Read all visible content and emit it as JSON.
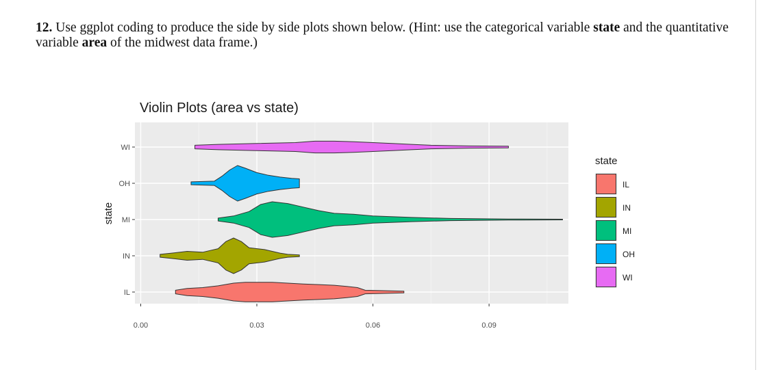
{
  "question": {
    "number": "12.",
    "text_1": " Use ggplot coding to produce the side by side plots shown below. (Hint: use the categorical variable ",
    "bold_1": "state",
    "text_2": " and the quantitative variable ",
    "bold_2": "area",
    "text_3": " of the midwest data frame.)"
  },
  "chart_data": {
    "type": "violin",
    "orientation": "horizontal",
    "title": "Violin Plots (area vs state)",
    "xlabel": "",
    "ylabel": "state",
    "xlim": [
      -0.0015,
      0.1105
    ],
    "x_ticks": [
      0.0,
      0.03,
      0.06,
      0.09
    ],
    "x_tick_labels": [
      "0.00",
      "0.03",
      "0.06",
      "0.09"
    ],
    "categories": [
      "IL",
      "IN",
      "MI",
      "OH",
      "WI"
    ],
    "grid": true,
    "legend": {
      "title": "state",
      "position": "right",
      "entries": [
        "IL",
        "IN",
        "MI",
        "OH",
        "WI"
      ]
    },
    "series": [
      {
        "name": "IL",
        "color": "#F8766D",
        "min": 0.009,
        "max": 0.068,
        "profile": [
          [
            0.009,
            0.1
          ],
          [
            0.012,
            0.2
          ],
          [
            0.016,
            0.25
          ],
          [
            0.02,
            0.35
          ],
          [
            0.024,
            0.5
          ],
          [
            0.027,
            0.55
          ],
          [
            0.03,
            0.55
          ],
          [
            0.034,
            0.55
          ],
          [
            0.038,
            0.5
          ],
          [
            0.042,
            0.45
          ],
          [
            0.046,
            0.42
          ],
          [
            0.05,
            0.38
          ],
          [
            0.054,
            0.3
          ],
          [
            0.056,
            0.25
          ],
          [
            0.058,
            0.1
          ],
          [
            0.062,
            0.08
          ],
          [
            0.068,
            0.05
          ]
        ]
      },
      {
        "name": "IN",
        "color": "#A3A500",
        "min": 0.005,
        "max": 0.041,
        "profile": [
          [
            0.005,
            0.08
          ],
          [
            0.008,
            0.15
          ],
          [
            0.012,
            0.25
          ],
          [
            0.016,
            0.2
          ],
          [
            0.018,
            0.3
          ],
          [
            0.02,
            0.4
          ],
          [
            0.022,
            0.8
          ],
          [
            0.024,
            1.0
          ],
          [
            0.026,
            0.8
          ],
          [
            0.028,
            0.45
          ],
          [
            0.032,
            0.35
          ],
          [
            0.036,
            0.15
          ],
          [
            0.038,
            0.08
          ],
          [
            0.041,
            0.05
          ]
        ]
      },
      {
        "name": "MI",
        "color": "#00BF7D",
        "min": 0.02,
        "max": 0.109,
        "profile": [
          [
            0.02,
            0.08
          ],
          [
            0.024,
            0.2
          ],
          [
            0.028,
            0.45
          ],
          [
            0.031,
            0.85
          ],
          [
            0.034,
            1.0
          ],
          [
            0.038,
            0.9
          ],
          [
            0.042,
            0.7
          ],
          [
            0.046,
            0.5
          ],
          [
            0.05,
            0.35
          ],
          [
            0.055,
            0.3
          ],
          [
            0.06,
            0.2
          ],
          [
            0.07,
            0.12
          ],
          [
            0.08,
            0.06
          ],
          [
            0.095,
            0.03
          ],
          [
            0.109,
            0.02
          ]
        ]
      },
      {
        "name": "OH",
        "color": "#00B0F6",
        "min": 0.013,
        "max": 0.041,
        "profile": [
          [
            0.013,
            0.08
          ],
          [
            0.016,
            0.1
          ],
          [
            0.019,
            0.12
          ],
          [
            0.021,
            0.4
          ],
          [
            0.023,
            0.75
          ],
          [
            0.025,
            1.0
          ],
          [
            0.027,
            0.85
          ],
          [
            0.03,
            0.6
          ],
          [
            0.033,
            0.45
          ],
          [
            0.036,
            0.35
          ],
          [
            0.039,
            0.28
          ],
          [
            0.041,
            0.25
          ]
        ]
      },
      {
        "name": "WI",
        "color": "#E76BF3",
        "min": 0.014,
        "max": 0.095,
        "profile": [
          [
            0.014,
            0.1
          ],
          [
            0.02,
            0.15
          ],
          [
            0.03,
            0.2
          ],
          [
            0.04,
            0.25
          ],
          [
            0.045,
            0.33
          ],
          [
            0.05,
            0.33
          ],
          [
            0.055,
            0.3
          ],
          [
            0.06,
            0.25
          ],
          [
            0.065,
            0.2
          ],
          [
            0.07,
            0.15
          ],
          [
            0.075,
            0.1
          ],
          [
            0.085,
            0.06
          ],
          [
            0.095,
            0.05
          ]
        ]
      }
    ]
  }
}
